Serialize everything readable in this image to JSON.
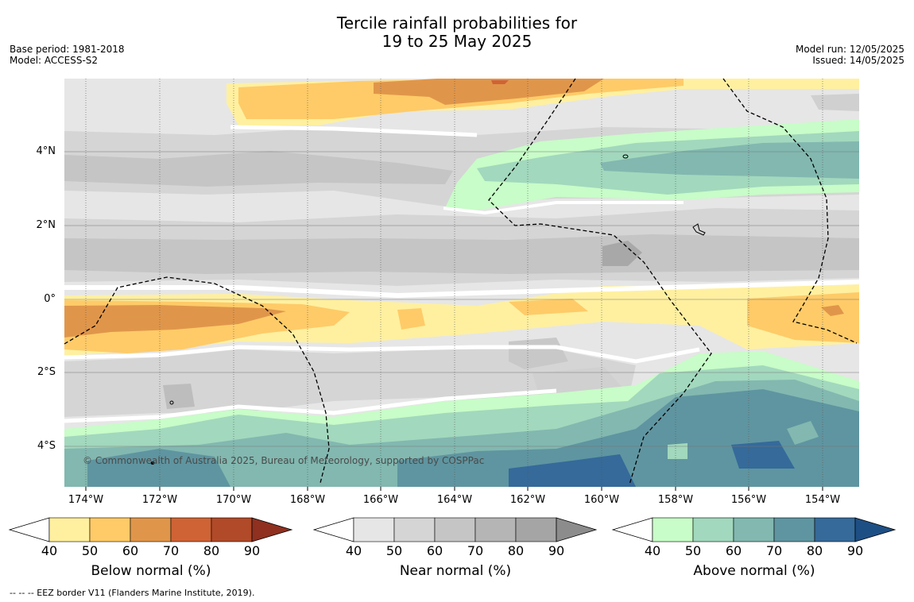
{
  "title": {
    "line1": "Tercile rainfall probabilities for",
    "line2": "19 to 25 May 2025"
  },
  "meta_left": {
    "base_period": "Base period: 1981-2018",
    "model": "Model: ACCESS-S2"
  },
  "meta_right": {
    "model_run": "Model run: 12/05/2025",
    "issued": "Issued: 14/05/2025"
  },
  "map": {
    "lat_labels": [
      "4°N",
      "2°N",
      "0°",
      "2°S",
      "4°S"
    ],
    "lon_labels": [
      "174°W",
      "172°W",
      "170°W",
      "168°W",
      "166°W",
      "164°W",
      "162°W",
      "160°W",
      "158°W",
      "156°W",
      "154°W"
    ],
    "copyright": "© Commonwealth of Australia 2025, Bureau of Meteorology, supported by COSPPac"
  },
  "colorbars": [
    {
      "title": "Below normal (%)",
      "ticks": [
        "40",
        "50",
        "60",
        "70",
        "80",
        "90"
      ],
      "colors": [
        "#fff0a0",
        "#fecb68",
        "#e0964a",
        "#cf6335",
        "#b04a28",
        "#8f3020"
      ]
    },
    {
      "title": "Near normal (%)",
      "ticks": [
        "40",
        "50",
        "60",
        "70",
        "80",
        "90"
      ],
      "colors": [
        "#e6e6e6",
        "#d5d5d5",
        "#c5c5c5",
        "#b5b5b5",
        "#a5a5a5",
        "#8c8c8c"
      ]
    },
    {
      "title": "Above normal (%)",
      "ticks": [
        "40",
        "50",
        "60",
        "70",
        "80",
        "90"
      ],
      "colors": [
        "#c8fcc8",
        "#a2d8bd",
        "#82b8b0",
        "#5f95a0",
        "#356a9a",
        "#1e4f84"
      ]
    }
  ],
  "footer": "--  --  -- EEZ border V11 (Flanders Marine Institute, 2019)."
}
